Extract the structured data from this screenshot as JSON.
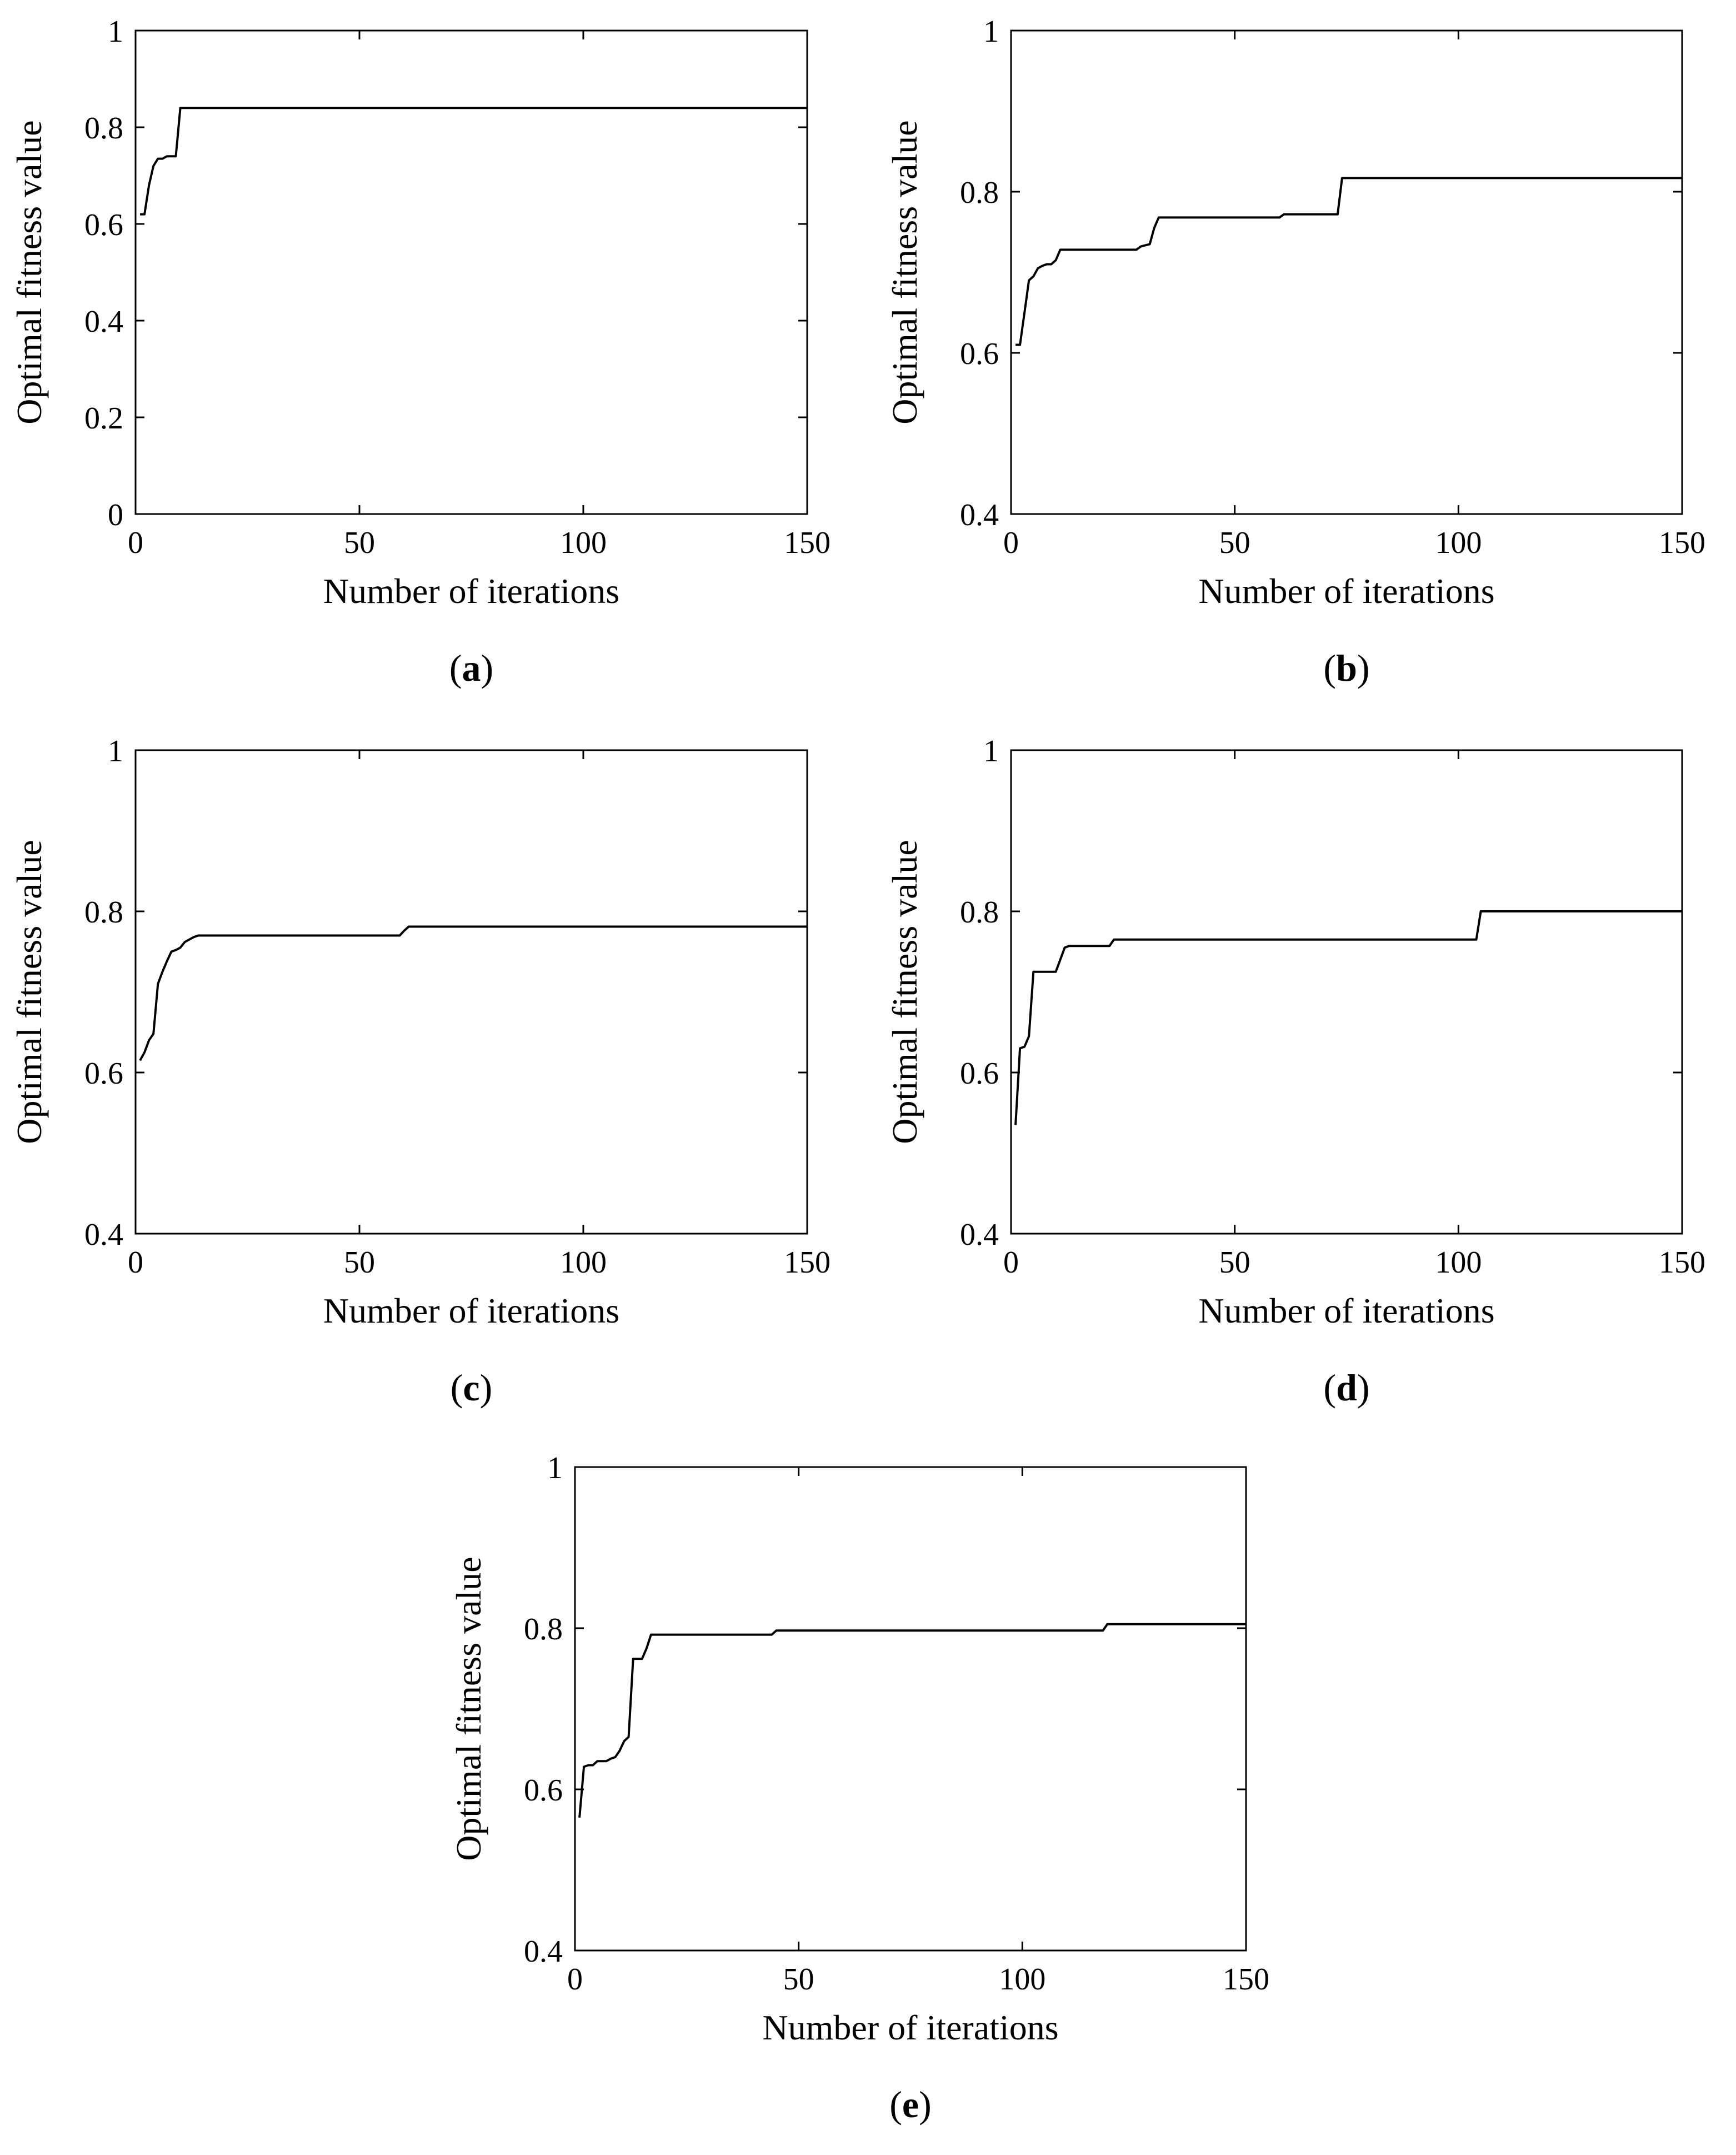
{
  "chart_data": [
    {
      "type": "line",
      "panel_label": "(a)",
      "panel_letter": "a",
      "xlabel": "Number of iterations",
      "ylabel": "Optimal fitness value",
      "xlim": [
        0,
        150
      ],
      "ylim": [
        0,
        1
      ],
      "xticks": [
        0,
        50,
        100,
        150
      ],
      "yticks": [
        0,
        0.2,
        0.4,
        0.6,
        0.8,
        1
      ],
      "ytick_labels": [
        "0",
        "0.2",
        "0.4",
        "0.6",
        "0.8",
        "1"
      ],
      "grid": false,
      "series": [
        {
          "x": [
            1,
            2,
            3,
            4,
            5,
            6,
            7,
            8,
            9,
            10,
            150
          ],
          "y": [
            0.62,
            0.62,
            0.68,
            0.72,
            0.735,
            0.735,
            0.74,
            0.74,
            0.74,
            0.84,
            0.84
          ]
        }
      ]
    },
    {
      "type": "line",
      "panel_label": "(b)",
      "panel_letter": "b",
      "xlabel": "Number of iterations",
      "ylabel": "Optimal fitness value",
      "xlim": [
        0,
        150
      ],
      "ylim": [
        0.4,
        1
      ],
      "xticks": [
        0,
        50,
        100,
        150
      ],
      "yticks": [
        0.4,
        0.6,
        0.8,
        1
      ],
      "ytick_labels": [
        "0.4",
        "0.6",
        "0.8",
        "1"
      ],
      "grid": false,
      "series": [
        {
          "x": [
            1,
            2,
            3,
            4,
            5,
            6,
            7,
            8,
            9,
            10,
            11,
            28,
            29,
            31,
            32,
            33,
            60,
            61,
            73,
            74,
            150
          ],
          "y": [
            0.61,
            0.61,
            0.65,
            0.69,
            0.695,
            0.705,
            0.708,
            0.71,
            0.71,
            0.715,
            0.728,
            0.728,
            0.732,
            0.735,
            0.755,
            0.768,
            0.768,
            0.772,
            0.772,
            0.817,
            0.817
          ]
        }
      ]
    },
    {
      "type": "line",
      "panel_label": "(c)",
      "panel_letter": "c",
      "xlabel": "Number of iterations",
      "ylabel": "Optimal fitness value",
      "xlim": [
        0,
        150
      ],
      "ylim": [
        0.4,
        1
      ],
      "xticks": [
        0,
        50,
        100,
        150
      ],
      "yticks": [
        0.4,
        0.6,
        0.8,
        1
      ],
      "ytick_labels": [
        "0.4",
        "0.6",
        "0.8",
        "1"
      ],
      "grid": false,
      "series": [
        {
          "x": [
            1,
            2,
            3,
            4,
            5,
            6,
            7,
            8,
            9,
            10,
            11,
            12,
            13,
            14,
            59,
            60,
            61,
            150
          ],
          "y": [
            0.615,
            0.625,
            0.64,
            0.648,
            0.71,
            0.725,
            0.738,
            0.75,
            0.752,
            0.755,
            0.762,
            0.765,
            0.768,
            0.77,
            0.77,
            0.776,
            0.781,
            0.781
          ]
        }
      ]
    },
    {
      "type": "line",
      "panel_label": "(d)",
      "panel_letter": "d",
      "xlabel": "Number of iterations",
      "ylabel": "Optimal fitness value",
      "xlim": [
        0,
        150
      ],
      "ylim": [
        0.4,
        1
      ],
      "xticks": [
        0,
        50,
        100,
        150
      ],
      "yticks": [
        0.4,
        0.6,
        0.8,
        1
      ],
      "ytick_labels": [
        "0.4",
        "0.6",
        "0.8",
        "1"
      ],
      "grid": false,
      "series": [
        {
          "x": [
            1,
            2,
            3,
            4,
            5,
            10,
            11,
            12,
            13,
            22,
            23,
            104,
            105,
            150
          ],
          "y": [
            0.535,
            0.63,
            0.632,
            0.645,
            0.725,
            0.725,
            0.74,
            0.755,
            0.757,
            0.757,
            0.765,
            0.765,
            0.8,
            0.8
          ]
        }
      ]
    },
    {
      "type": "line",
      "panel_label": "(e)",
      "panel_letter": "e",
      "xlabel": "Number of iterations",
      "ylabel": "Optimal fitness value",
      "xlim": [
        0,
        150
      ],
      "ylim": [
        0.4,
        1
      ],
      "xticks": [
        0,
        50,
        100,
        150
      ],
      "yticks": [
        0.4,
        0.6,
        0.8,
        1
      ],
      "ytick_labels": [
        "0.4",
        "0.6",
        "0.8",
        "1"
      ],
      "grid": false,
      "series": [
        {
          "x": [
            1,
            2,
            3,
            4,
            5,
            6,
            7,
            8,
            9,
            10,
            11,
            12,
            13,
            14,
            15,
            16,
            17,
            44,
            45,
            118,
            119,
            150
          ],
          "y": [
            0.565,
            0.628,
            0.63,
            0.63,
            0.635,
            0.635,
            0.635,
            0.638,
            0.64,
            0.648,
            0.66,
            0.665,
            0.762,
            0.762,
            0.762,
            0.775,
            0.792,
            0.792,
            0.797,
            0.797,
            0.805,
            0.805
          ]
        }
      ]
    }
  ]
}
